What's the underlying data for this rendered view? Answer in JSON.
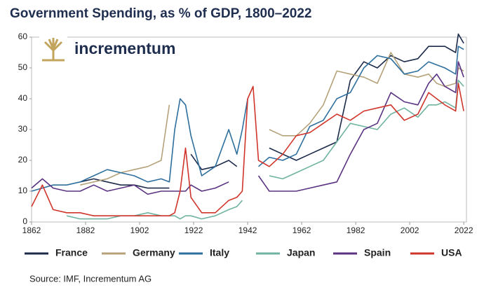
{
  "chart_data": {
    "type": "line",
    "title": "Government Spending, as % of GDP, 1800–2022",
    "brand": "incrementum",
    "source": "Source: IMF, Incrementum AG",
    "x": [
      1862,
      1866,
      1870,
      1875,
      1880,
      1885,
      1890,
      1895,
      1900,
      1905,
      1910,
      1913,
      1915,
      1917,
      1919,
      1921,
      1925,
      1930,
      1935,
      1938,
      1940,
      1942,
      1944,
      1946,
      1950,
      1955,
      1960,
      1965,
      1970,
      1975,
      1980,
      1985,
      1990,
      1995,
      2000,
      2005,
      2009,
      2012,
      2015,
      2019,
      2020,
      2022
    ],
    "xlim": [
      1862,
      2023
    ],
    "xticks": [
      1862,
      1882,
      1902,
      1922,
      1942,
      1962,
      1982,
      2002,
      2022
    ],
    "ylim": [
      0,
      60
    ],
    "yticks": [
      0,
      10,
      20,
      30,
      40,
      50,
      60
    ],
    "grid": false,
    "series": [
      {
        "name": "France",
        "color": "#1c2b4a",
        "values": [
          null,
          null,
          null,
          null,
          13,
          14,
          13,
          12,
          12,
          11,
          11,
          11,
          null,
          null,
          null,
          22,
          17,
          18,
          20,
          18,
          null,
          null,
          null,
          null,
          24,
          22,
          20,
          22,
          24,
          26,
          46,
          52,
          50,
          54,
          52,
          53,
          57,
          57,
          57,
          55,
          61,
          58
        ]
      },
      {
        "name": "Germany",
        "color": "#b5a27a",
        "values": [
          null,
          null,
          null,
          null,
          12,
          13,
          14,
          16,
          17,
          18,
          20,
          38,
          null,
          null,
          null,
          null,
          null,
          null,
          null,
          null,
          null,
          null,
          null,
          null,
          30,
          28,
          28,
          32,
          38,
          49,
          48,
          47,
          45,
          55,
          48,
          47,
          48,
          45,
          44,
          45,
          50,
          49
        ]
      },
      {
        "name": "Italy",
        "color": "#2e6f9e",
        "values": [
          10,
          11,
          12,
          12,
          13,
          15,
          17,
          16,
          15,
          13,
          14,
          13,
          30,
          40,
          38,
          28,
          15,
          18,
          30,
          22,
          30,
          40,
          null,
          18,
          21,
          20,
          22,
          31,
          33,
          40,
          42,
          50,
          54,
          53,
          48,
          49,
          52,
          51,
          50,
          48,
          57,
          56
        ]
      },
      {
        "name": "Japan",
        "color": "#6fb3a0",
        "values": [
          null,
          null,
          null,
          2,
          1,
          1,
          1,
          2,
          2,
          3,
          2,
          2,
          2,
          1,
          2,
          2,
          1,
          2,
          4,
          5,
          7,
          null,
          null,
          null,
          15,
          14,
          16,
          18,
          20,
          26,
          32,
          31,
          30,
          35,
          37,
          34,
          38,
          38,
          39,
          37,
          46,
          44
        ]
      },
      {
        "name": "Spain",
        "color": "#5a3282",
        "values": [
          11,
          14,
          11,
          10,
          10,
          12,
          10,
          11,
          12,
          9,
          10,
          10,
          10,
          10,
          10,
          12,
          10,
          11,
          13,
          null,
          null,
          null,
          null,
          15,
          10,
          10,
          10,
          11,
          12,
          13,
          22,
          30,
          32,
          42,
          39,
          38,
          45,
          48,
          44,
          42,
          52,
          47
        ]
      },
      {
        "name": "USA",
        "color": "#d0352b",
        "values": [
          5,
          12,
          4,
          3,
          3,
          2,
          2,
          2,
          2,
          2,
          2,
          2,
          3,
          10,
          24,
          8,
          3,
          3,
          7,
          8,
          10,
          40,
          44,
          20,
          18,
          22,
          28,
          29,
          32,
          35,
          33,
          36,
          37,
          38,
          33,
          35,
          42,
          40,
          38,
          36,
          45,
          36
        ]
      }
    ]
  }
}
